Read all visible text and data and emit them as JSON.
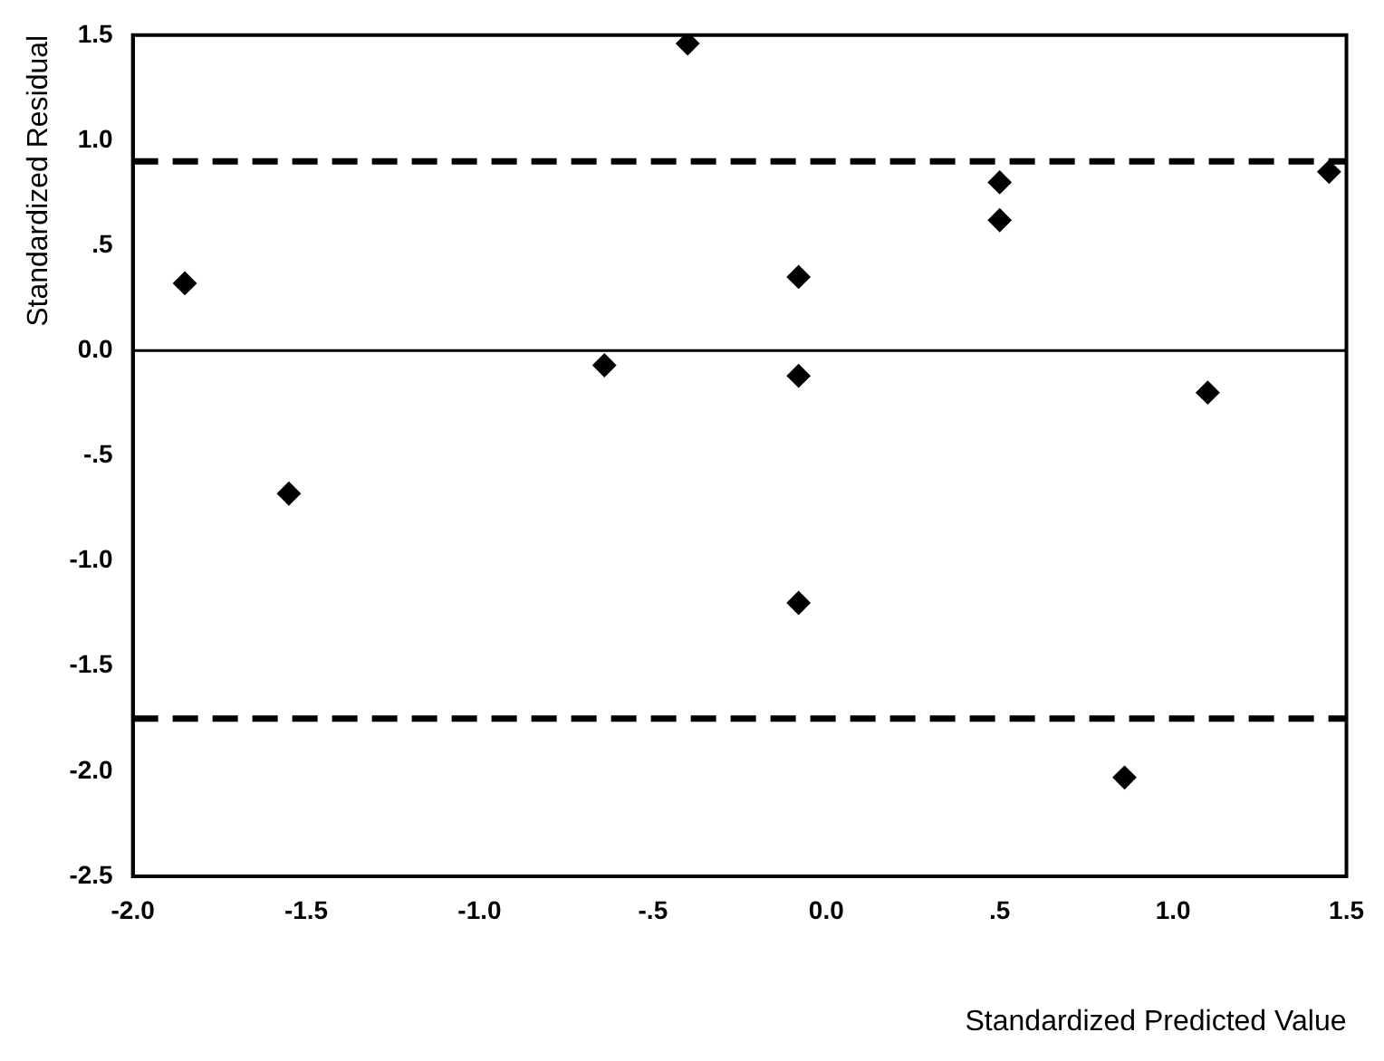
{
  "chart_data": {
    "type": "scatter",
    "xlabel": "Standardized Predicted Value",
    "ylabel": "Standardized Residual",
    "x": [
      -1.85,
      -1.55,
      -0.64,
      -0.4,
      -0.08,
      -0.08,
      -0.08,
      0.5,
      0.5,
      0.86,
      1.1,
      1.45
    ],
    "series": [
      {
        "color": "#000000",
        "values": [
          0.32,
          -0.68,
          -0.07,
          1.46,
          0.35,
          -0.12,
          -1.2,
          0.8,
          0.62,
          -2.03,
          -0.2,
          0.85
        ]
      }
    ],
    "xlim": [
      -2.0,
      1.5
    ],
    "xticks": [
      {
        "value": -2,
        "label": "-2.0"
      },
      {
        "value": -1.5,
        "label": "-1.5"
      },
      {
        "value": -1,
        "label": "-1.0"
      },
      {
        "value": -0.5,
        "label": "-.5"
      },
      {
        "value": 0,
        "label": "0.0"
      },
      {
        "value": 0.5,
        "label": ".5"
      },
      {
        "value": 1,
        "label": "1.0"
      },
      {
        "value": 1.5,
        "label": "1.5"
      }
    ],
    "ylim": [
      -2.5,
      1.5
    ],
    "yticks": [
      {
        "value": -2.5,
        "label": "-2.5"
      },
      {
        "value": -2,
        "label": "-2.0"
      },
      {
        "value": -1.5,
        "label": "-1.5"
      },
      {
        "value": -1,
        "label": "-1.0"
      },
      {
        "value": -0.5,
        "label": "-.5"
      },
      {
        "value": 0,
        "label": "0.0"
      },
      {
        "value": 0.5,
        "label": ".5"
      },
      {
        "value": 1,
        "label": "1.0"
      },
      {
        "value": 1.5,
        "label": "1.5"
      }
    ],
    "ref_lines": [
      {
        "axis": "y",
        "value": 0,
        "line_style": "solid",
        "color": "#000000"
      },
      {
        "axis": "y",
        "value": 0.9,
        "line_style": "dashed",
        "color": "#000000"
      },
      {
        "axis": "y",
        "value": -1.75,
        "line_style": "dashed",
        "color": "#000000"
      }
    ],
    "marker": "diamond",
    "grid": false,
    "legend": false
  }
}
